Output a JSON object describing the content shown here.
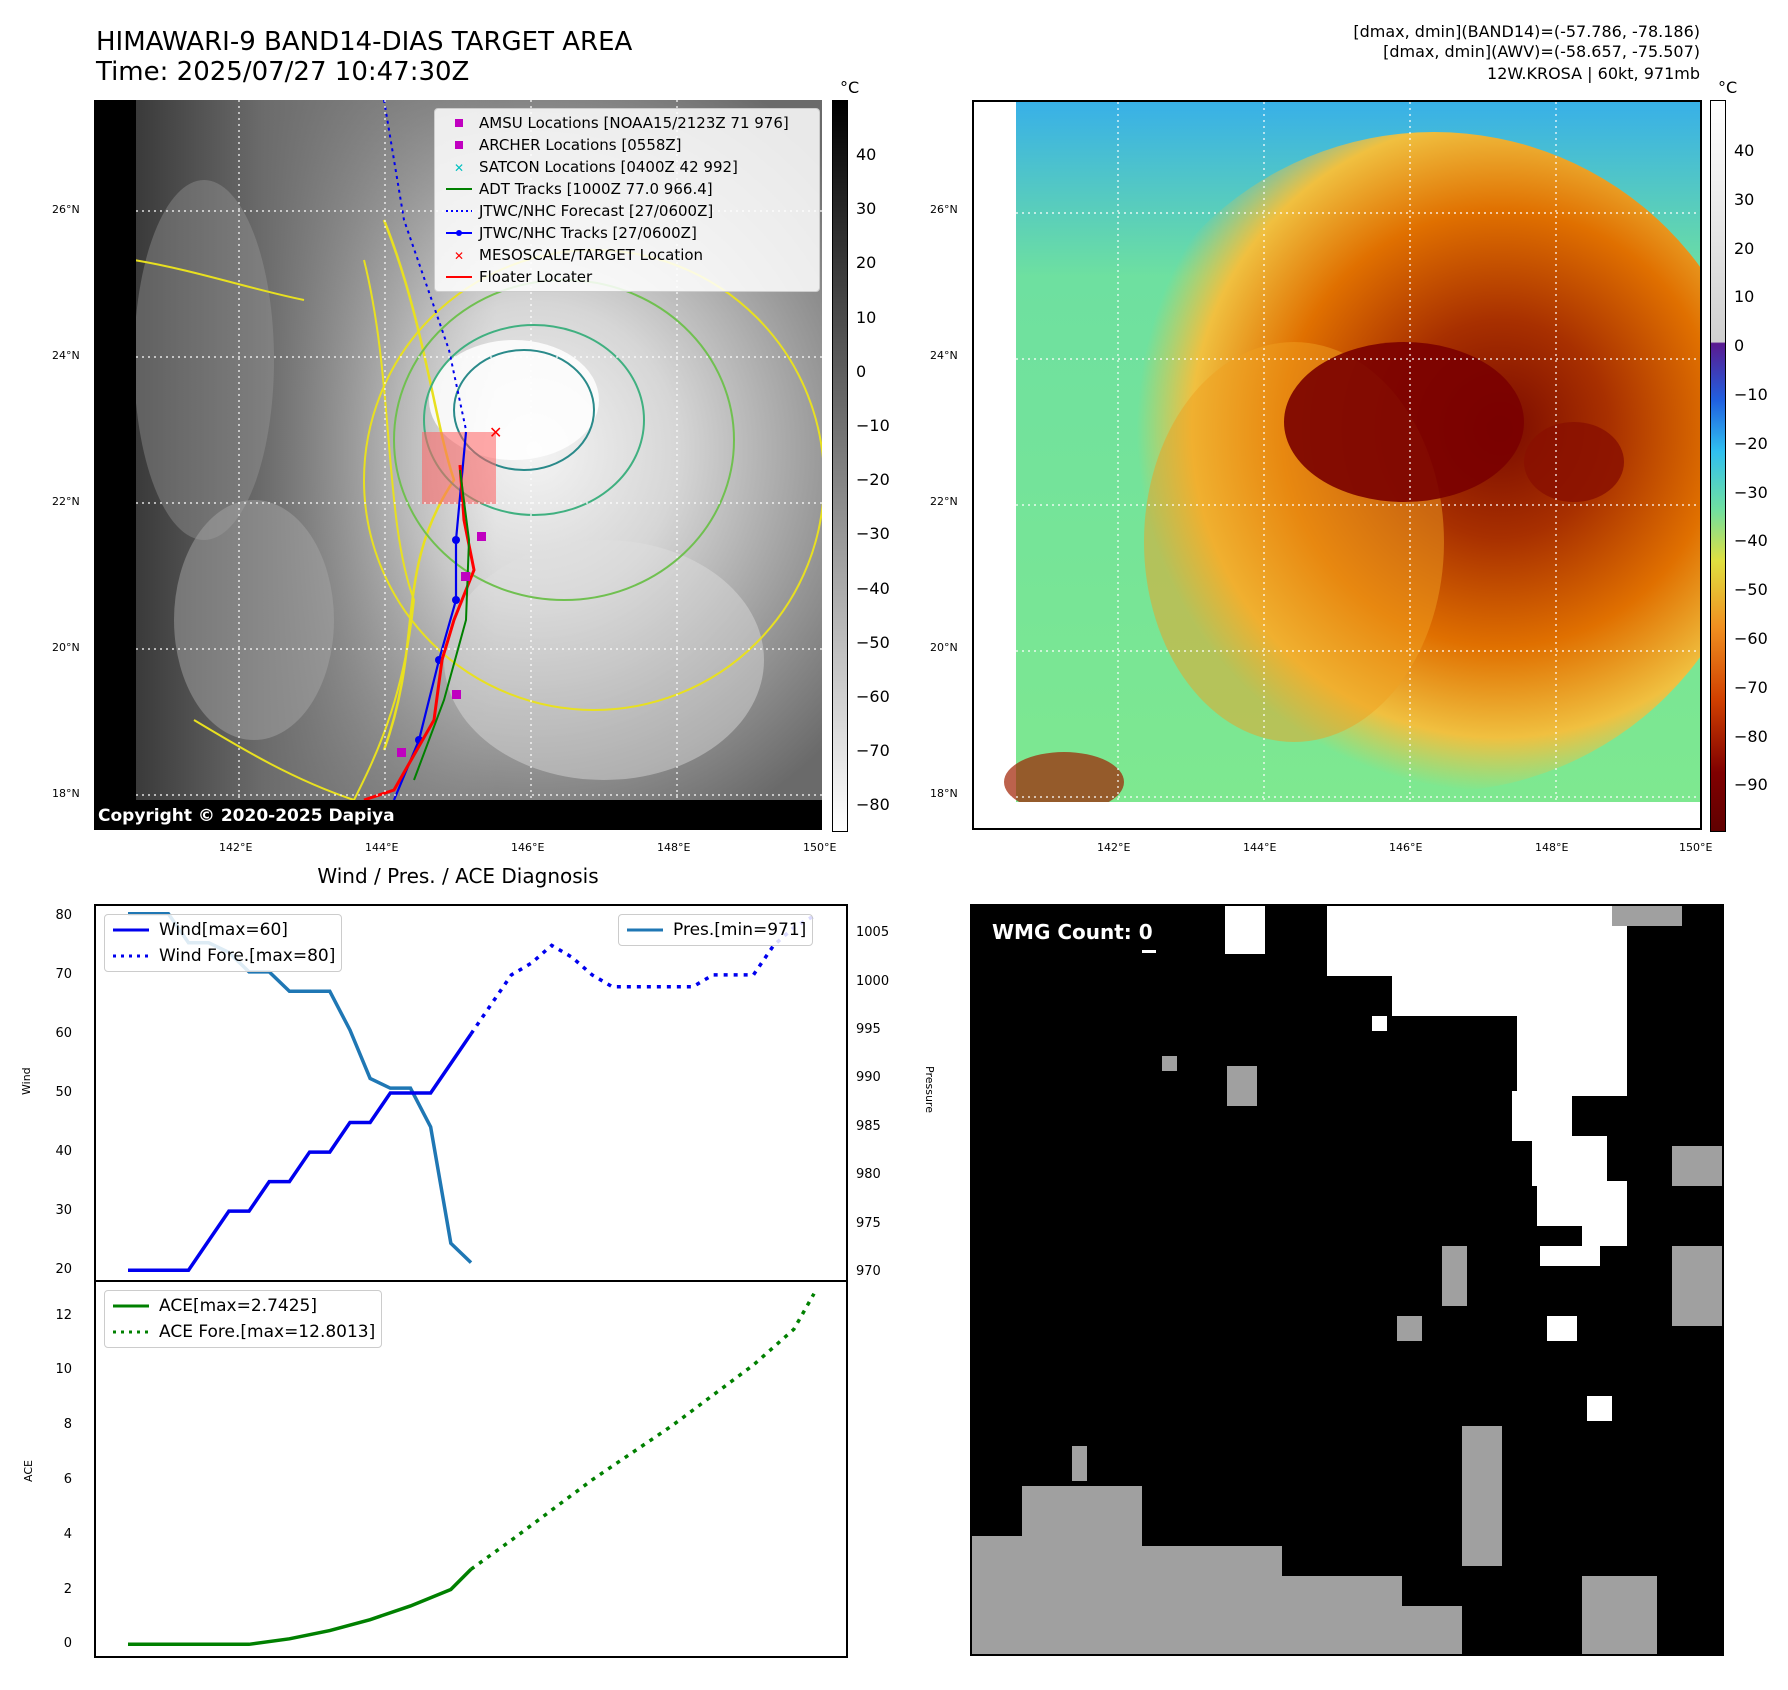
{
  "header": {
    "title_line1": "HIMAWARI-9 BAND14-DIAS TARGET AREA",
    "title_line2": "Time: 2025/07/27 10:47:30Z",
    "info_line1": "[dmax, dmin](BAND14)=(-57.786, -78.186)",
    "info_line2": "[dmax, dmin](AWV)=(-58.657, -75.507)",
    "info_line3": "12W.KROSA | 60kt, 971mb"
  },
  "maps": {
    "lat_labels": [
      "26°N",
      "24°N",
      "22°N",
      "20°N",
      "18°N"
    ],
    "lon_labels": [
      "142°E",
      "144°E",
      "146°E",
      "148°E",
      "150°E"
    ],
    "copyright": "Copyright © 2020-2025 Dapiya",
    "colorbar_unit": "°C"
  },
  "map_left_legend": [
    {
      "label": "AMSU Locations [NOAA15/2123Z 71 976]",
      "symbol": "square",
      "color": "#c000c0"
    },
    {
      "label": "ARCHER Locations [0558Z]",
      "symbol": "square",
      "color": "#c000c0"
    },
    {
      "label": "SATCON Locations [0400Z 42 992]",
      "symbol": "x",
      "color": "#00c0c0"
    },
    {
      "label": "ADT Tracks [1000Z 77.0 966.4]",
      "symbol": "line",
      "color": "#008000"
    },
    {
      "label": "JTWC/NHC Forecast [27/0600Z]",
      "symbol": "dotted",
      "color": "#0000ff"
    },
    {
      "label": "JTWC/NHC Tracks [27/0600Z]",
      "symbol": "line-dot",
      "color": "#0000ff"
    },
    {
      "label": "MESOSCALE/TARGET Location",
      "symbol": "x",
      "color": "#ff0000"
    },
    {
      "label": "Floater Locater",
      "symbol": "line",
      "color": "#ff0000"
    }
  ],
  "colorbar_left_ticks": [
    "40",
    "30",
    "20",
    "10",
    "0",
    "−10",
    "−20",
    "−30",
    "−40",
    "−50",
    "−60",
    "−70",
    "−80"
  ],
  "colorbar_right_ticks": [
    "40",
    "30",
    "20",
    "10",
    "0",
    "−10",
    "−20",
    "−30",
    "−40",
    "−50",
    "−60",
    "−70",
    "−80",
    "−90"
  ],
  "diagnosis": {
    "title": "Wind / Pres. / ACE Diagnosis",
    "wind_label": "Wind",
    "pressure_label": "Pressure",
    "ace_label": "ACE",
    "wind_legend": [
      "Wind[max=60]",
      "Wind Fore.[max=80]"
    ],
    "pres_legend": "Pres.[min=971]",
    "ace_legend": [
      "ACE[max=2.7425]",
      "ACE Fore.[max=12.8013]"
    ],
    "wind_ticks": [
      "80",
      "70",
      "60",
      "50",
      "40",
      "30",
      "20"
    ],
    "pres_ticks": [
      "1005",
      "1000",
      "995",
      "990",
      "985",
      "980",
      "975",
      "970"
    ],
    "ace_ticks": [
      "12",
      "10",
      "8",
      "6",
      "4",
      "2",
      "0"
    ]
  },
  "wmg": {
    "label": "WMG Count: 0"
  },
  "chart_data": [
    {
      "type": "line",
      "title": "Wind / Pres. / ACE Diagnosis",
      "ylabel": "Wind",
      "ylim": [
        18,
        82
      ],
      "series": [
        {
          "name": "Wind[max=60]",
          "x": [
            0,
            1,
            2,
            3,
            4,
            5,
            6,
            7,
            8,
            9,
            10,
            11,
            12,
            13,
            14,
            15,
            16,
            17
          ],
          "values": [
            20,
            20,
            20,
            20,
            25,
            30,
            30,
            35,
            35,
            40,
            40,
            45,
            45,
            50,
            50,
            50,
            55,
            60
          ]
        },
        {
          "name": "Wind Fore.[max=80]",
          "x": [
            17,
            18,
            19,
            20,
            21,
            22,
            23,
            24,
            25,
            26,
            27,
            28,
            29,
            30,
            31,
            32,
            33,
            34
          ],
          "values": [
            60,
            65,
            70,
            72,
            75,
            73,
            70,
            68,
            68,
            68,
            68,
            68,
            70,
            70,
            70,
            75,
            78,
            80
          ]
        }
      ]
    },
    {
      "type": "line",
      "ylabel": "Pressure",
      "ylim": [
        969,
        1008
      ],
      "series": [
        {
          "name": "Pres.[min=971]",
          "x": [
            0,
            1,
            2,
            3,
            4,
            5,
            6,
            7,
            8,
            9,
            10,
            11,
            12,
            13,
            14,
            15,
            16,
            17
          ],
          "values": [
            1007,
            1007,
            1007,
            1004,
            1004,
            1003,
            1001,
            1001,
            999,
            999,
            999,
            995,
            990,
            989,
            989,
            985,
            973,
            971
          ]
        }
      ]
    },
    {
      "type": "line",
      "ylabel": "ACE",
      "ylim": [
        -0.5,
        13.3
      ],
      "series": [
        {
          "name": "ACE[max=2.7425]",
          "x": [
            0,
            2,
            4,
            6,
            8,
            10,
            12,
            14,
            16,
            17
          ],
          "values": [
            0,
            0,
            0,
            0,
            0.2,
            0.5,
            0.9,
            1.4,
            2.0,
            2.74
          ]
        },
        {
          "name": "ACE Fore.[max=12.8013]",
          "x": [
            17,
            19,
            21,
            23,
            25,
            27,
            29,
            31,
            33,
            34
          ],
          "values": [
            2.74,
            3.8,
            4.9,
            6.0,
            7.0,
            8.0,
            9.1,
            10.2,
            11.5,
            12.8
          ]
        }
      ]
    }
  ]
}
